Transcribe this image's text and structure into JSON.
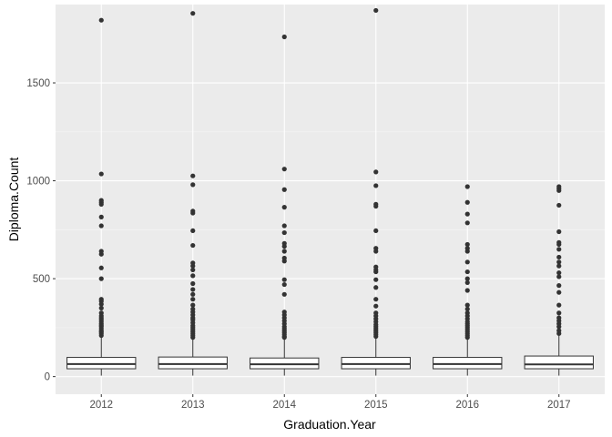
{
  "chart_data": {
    "type": "boxplot",
    "title": "",
    "xlabel": "Graduation.Year",
    "ylabel": "Diploma.Count",
    "categories": [
      "2012",
      "2013",
      "2014",
      "2015",
      "2016",
      "2017"
    ],
    "ylim": [
      -90,
      1900
    ],
    "yticks": [
      0,
      500,
      1000,
      1500
    ],
    "grid": true,
    "boxes": [
      {
        "category": "2012",
        "min": 5,
        "q1": 40,
        "median": 64,
        "q3": 98,
        "max": 205,
        "outliers": [
          210,
          220,
          228,
          235,
          245,
          255,
          262,
          270,
          280,
          290,
          300,
          310,
          325,
          350,
          370,
          385,
          395,
          500,
          555,
          625,
          640,
          770,
          815,
          880,
          890,
          900,
          1035,
          1820
        ]
      },
      {
        "category": "2013",
        "min": 5,
        "q1": 40,
        "median": 64,
        "q3": 100,
        "max": 195,
        "outliers": [
          200,
          210,
          220,
          230,
          240,
          250,
          260,
          275,
          290,
          300,
          315,
          330,
          345,
          365,
          395,
          420,
          445,
          475,
          515,
          545,
          565,
          580,
          670,
          745,
          835,
          845,
          980,
          1025,
          1855
        ]
      },
      {
        "category": "2014",
        "min": 5,
        "q1": 40,
        "median": 63,
        "q3": 95,
        "max": 195,
        "outliers": [
          200,
          205,
          215,
          225,
          235,
          245,
          255,
          270,
          285,
          300,
          315,
          330,
          420,
          470,
          495,
          590,
          605,
          640,
          665,
          680,
          735,
          770,
          865,
          955,
          1060,
          1735
        ]
      },
      {
        "category": "2015",
        "min": 5,
        "q1": 40,
        "median": 64,
        "q3": 98,
        "max": 200,
        "outliers": [
          205,
          215,
          225,
          235,
          245,
          255,
          265,
          280,
          295,
          310,
          325,
          360,
          395,
          455,
          495,
          535,
          545,
          560,
          640,
          655,
          745,
          870,
          880,
          975,
          1045,
          1870
        ]
      },
      {
        "category": "2016",
        "min": 5,
        "q1": 40,
        "median": 64,
        "q3": 98,
        "max": 195,
        "outliers": [
          200,
          210,
          220,
          230,
          240,
          250,
          260,
          270,
          280,
          295,
          310,
          325,
          345,
          365,
          440,
          480,
          500,
          535,
          585,
          640,
          655,
          675,
          785,
          830,
          890,
          970
        ]
      },
      {
        "category": "2017",
        "min": 5,
        "q1": 40,
        "median": 62,
        "q3": 105,
        "max": 215,
        "outliers": [
          220,
          235,
          255,
          270,
          285,
          300,
          325,
          365,
          430,
          465,
          510,
          530,
          565,
          585,
          610,
          650,
          675,
          685,
          740,
          875,
          950,
          960,
          970
        ]
      }
    ]
  }
}
